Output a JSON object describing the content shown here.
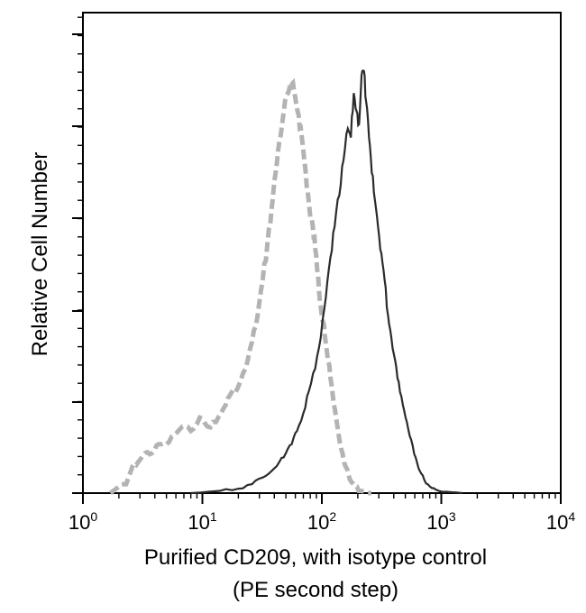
{
  "chart_data": {
    "type": "line",
    "title": "",
    "xscale": "log",
    "xlim": [
      1,
      10000
    ],
    "ylim": [
      0,
      100
    ],
    "grid": false,
    "ylabel": "Relative Cell Number",
    "xlabel_lines": [
      "Purified CD209, with isotype control",
      "(PE second step)"
    ],
    "x_ticks": [
      {
        "base": "10",
        "exp": "0",
        "value": 1
      },
      {
        "base": "10",
        "exp": "1",
        "value": 10
      },
      {
        "base": "10",
        "exp": "2",
        "value": 100
      },
      {
        "base": "10",
        "exp": "3",
        "value": 1000
      },
      {
        "base": "10",
        "exp": "4",
        "value": 10000
      }
    ],
    "series": [
      {
        "name": "Isotype control",
        "style": "dashed",
        "color": "#b3b3b3",
        "points": [
          [
            1.7,
            0
          ],
          [
            2.0,
            1.5
          ],
          [
            2.3,
            2
          ],
          [
            2.6,
            6
          ],
          [
            2.9,
            7
          ],
          [
            3.3,
            9
          ],
          [
            3.8,
            9
          ],
          [
            4.3,
            11
          ],
          [
            5.0,
            11
          ],
          [
            5.8,
            13
          ],
          [
            6.8,
            15
          ],
          [
            8.0,
            14
          ],
          [
            9.5,
            17
          ],
          [
            11,
            15
          ],
          [
            13,
            16
          ],
          [
            15,
            19
          ],
          [
            17,
            22
          ],
          [
            20,
            24
          ],
          [
            23,
            28
          ],
          [
            26,
            34
          ],
          [
            29,
            40
          ],
          [
            32,
            48
          ],
          [
            35,
            56
          ],
          [
            38,
            64
          ],
          [
            41,
            72
          ],
          [
            44,
            79
          ],
          [
            48,
            86
          ],
          [
            52,
            90
          ],
          [
            56,
            92
          ],
          [
            60,
            89
          ],
          [
            64,
            85
          ],
          [
            68,
            80
          ],
          [
            72,
            74
          ],
          [
            76,
            68
          ],
          [
            80,
            62
          ],
          [
            84,
            60
          ],
          [
            88,
            55
          ],
          [
            93,
            49
          ],
          [
            98,
            42
          ],
          [
            104,
            38
          ],
          [
            110,
            32
          ],
          [
            118,
            26
          ],
          [
            126,
            20
          ],
          [
            135,
            15
          ],
          [
            145,
            10
          ],
          [
            158,
            6
          ],
          [
            172,
            3
          ],
          [
            190,
            1.5
          ],
          [
            210,
            0.5
          ],
          [
            260,
            0
          ]
        ]
      },
      {
        "name": "Purified CD209",
        "style": "solid",
        "color": "#2b2b2b",
        "points": [
          [
            8,
            0
          ],
          [
            14,
            0.5
          ],
          [
            20,
            1
          ],
          [
            26,
            2
          ],
          [
            32,
            3.5
          ],
          [
            38,
            5
          ],
          [
            44,
            7
          ],
          [
            50,
            9
          ],
          [
            56,
            11
          ],
          [
            62,
            14
          ],
          [
            70,
            18
          ],
          [
            78,
            23
          ],
          [
            88,
            28
          ],
          [
            98,
            35
          ],
          [
            108,
            44
          ],
          [
            118,
            53
          ],
          [
            128,
            60
          ],
          [
            140,
            67
          ],
          [
            152,
            75
          ],
          [
            165,
            82
          ],
          [
            175,
            80
          ],
          [
            185,
            90
          ],
          [
            195,
            86
          ],
          [
            205,
            83
          ],
          [
            215,
            94
          ],
          [
            225,
            95
          ],
          [
            235,
            88
          ],
          [
            248,
            80
          ],
          [
            262,
            72
          ],
          [
            278,
            66
          ],
          [
            295,
            60
          ],
          [
            315,
            54
          ],
          [
            335,
            48
          ],
          [
            358,
            40
          ],
          [
            382,
            35
          ],
          [
            410,
            30
          ],
          [
            440,
            25
          ],
          [
            475,
            20
          ],
          [
            515,
            16
          ],
          [
            560,
            12
          ],
          [
            610,
            8
          ],
          [
            660,
            5
          ],
          [
            720,
            3
          ],
          [
            800,
            1.5
          ],
          [
            900,
            0.8
          ],
          [
            1100,
            0.3
          ],
          [
            1500,
            0
          ]
        ]
      }
    ]
  }
}
